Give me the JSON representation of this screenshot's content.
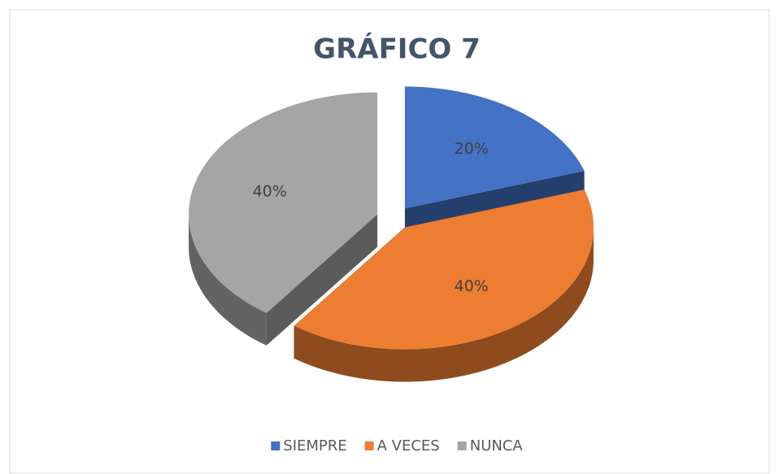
{
  "chart_data": {
    "type": "pie",
    "title": "GRÁFICO 7",
    "categories": [
      "SIEMPRE",
      "A VECES",
      "NUNCA"
    ],
    "values": [
      20,
      40,
      40
    ],
    "value_labels": [
      "20%",
      "40%",
      "40%"
    ],
    "colors": [
      "#4472c4",
      "#ed7d31",
      "#a5a5a5"
    ],
    "legend": "bottom"
  }
}
